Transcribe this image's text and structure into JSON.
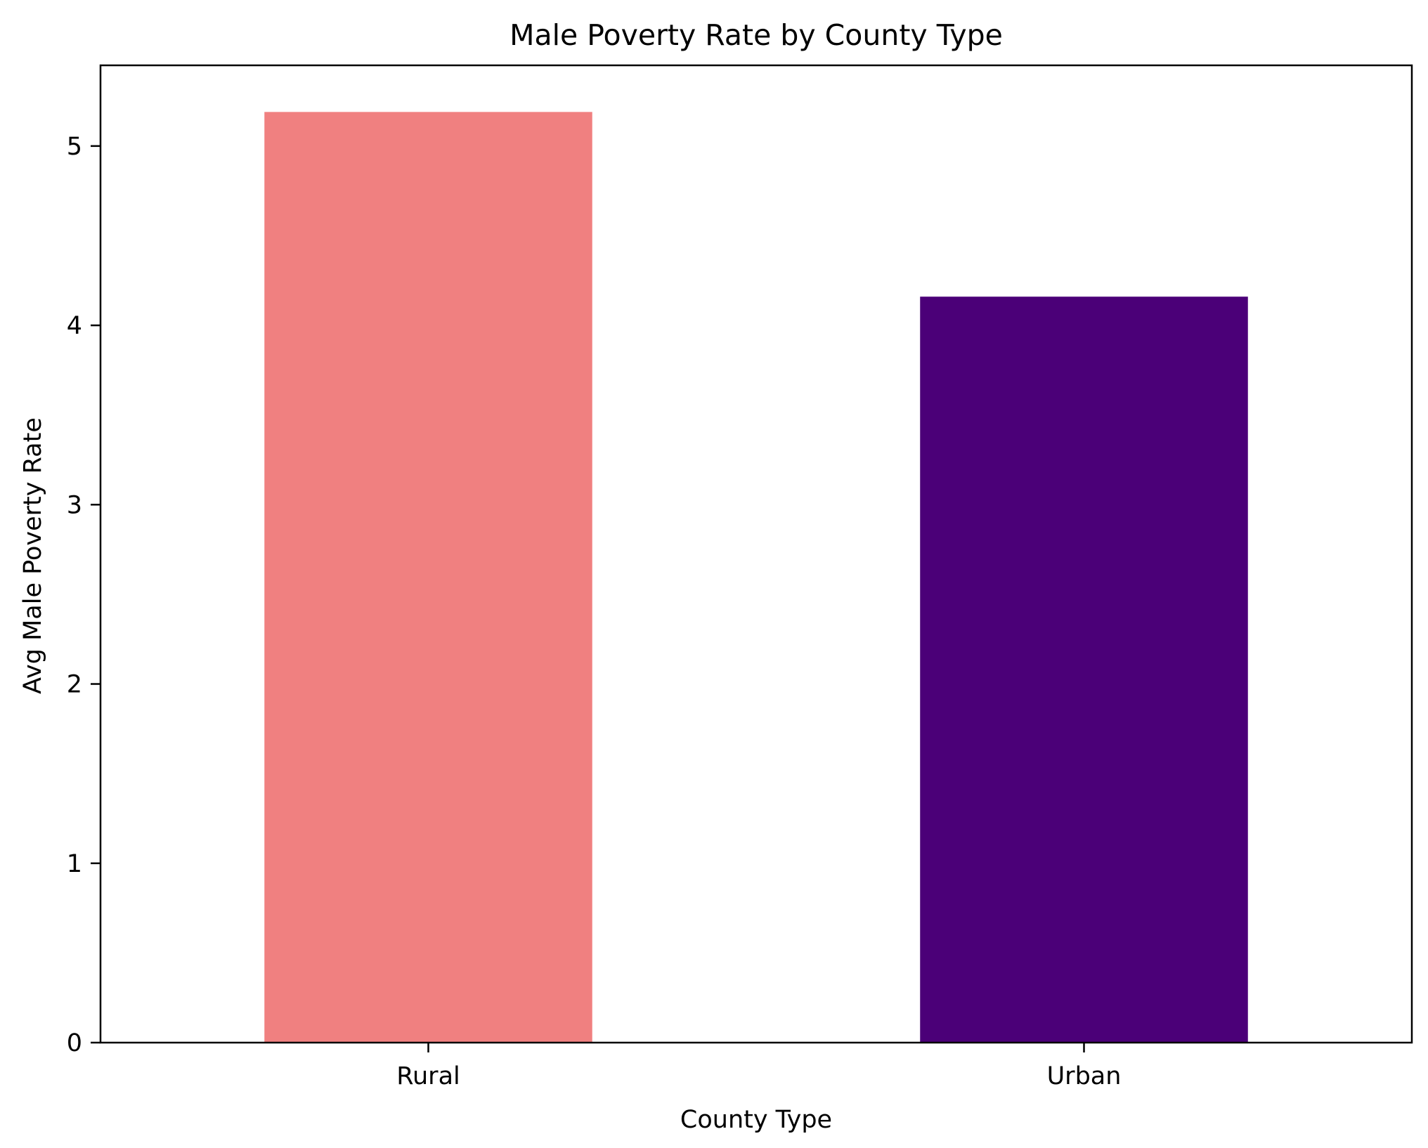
{
  "chart_data": {
    "type": "bar",
    "title": "Male Poverty Rate by County Type",
    "xlabel": "County Type",
    "ylabel": "Avg Male Poverty Rate",
    "categories": [
      "Rural",
      "Urban"
    ],
    "values": [
      5.19,
      4.16
    ],
    "colors": [
      "#f08080",
      "#4b0078"
    ],
    "ylim": [
      0,
      5.45
    ],
    "yticks": [
      0,
      1,
      2,
      3,
      4,
      5
    ],
    "grid": false,
    "legend": "none"
  }
}
